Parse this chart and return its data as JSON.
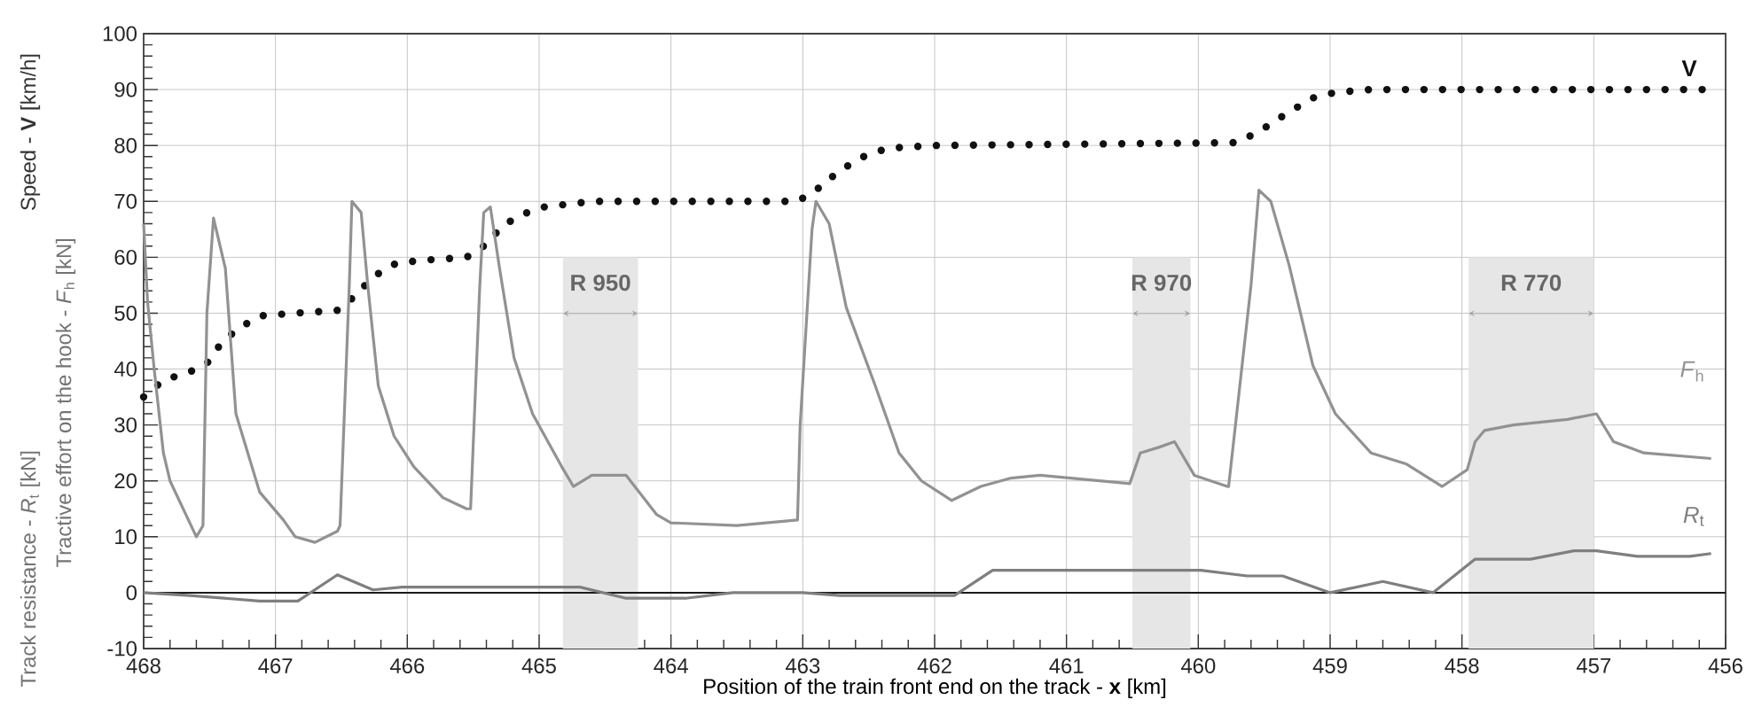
{
  "chart_data": {
    "type": "line",
    "xlabel": "Position of the train front end on the track - **x** [km]",
    "ylabel": "Speed - **V** [km/h]",
    "annotations": [
      "Tractive effort on the hook - *F*$_{h}$ [kN]",
      "Track resistance - *R*$_{t}$ [kN]"
    ],
    "xlim": [
      468,
      456
    ],
    "ylim": [
      -10,
      100
    ],
    "xticks": [
      468,
      467,
      466,
      465,
      464,
      463,
      462,
      461,
      460,
      459,
      458,
      457,
      456
    ],
    "yticks": [
      -10,
      0,
      10,
      20,
      30,
      40,
      50,
      60,
      70,
      80,
      90,
      100
    ],
    "grid": true,
    "series": [
      {
        "name": "**V**",
        "color": "#111111",
        "line_style": "dotted",
        "x": [
          468.0,
          467.85,
          467.65,
          467.52,
          467.43,
          467.3,
          467.12,
          466.85,
          466.53,
          466.4,
          466.26,
          466.08,
          465.86,
          465.55,
          465.42,
          465.28,
          465.15,
          464.96,
          464.6,
          463.04,
          462.9,
          462.72,
          462.54,
          462.36,
          462.0,
          459.71,
          459.54,
          459.31,
          459.13,
          458.96,
          458.69,
          456.17
        ],
        "values": [
          35,
          38,
          39.5,
          41,
          44,
          47,
          49.5,
          50,
          50.5,
          53,
          56.5,
          59,
          59.5,
          60,
          62,
          65.5,
          67.5,
          69,
          70,
          70,
          72,
          75.5,
          78,
          79.5,
          80,
          80.5,
          82.5,
          86,
          88.5,
          89.5,
          90,
          90
        ]
      },
      {
        "name": "*F*$_{h}$",
        "color": "#929292",
        "line_style": "solid",
        "x": [
          468.0,
          467.97,
          467.92,
          467.85,
          467.8,
          467.7,
          467.6,
          467.55,
          467.52,
          467.47,
          467.38,
          467.3,
          467.12,
          466.94,
          466.85,
          466.7,
          466.53,
          466.51,
          466.44,
          466.42,
          466.35,
          466.3,
          466.22,
          466.1,
          465.95,
          465.73,
          465.55,
          465.52,
          465.45,
          465.42,
          465.37,
          465.3,
          465.19,
          465.05,
          464.83,
          464.74,
          464.6,
          464.34,
          464.11,
          464.0,
          463.5,
          463.04,
          463.02,
          462.93,
          462.9,
          462.8,
          462.67,
          462.45,
          462.27,
          462.1,
          461.87,
          461.65,
          461.42,
          461.2,
          460.52,
          460.44,
          460.3,
          460.18,
          460.03,
          459.78,
          459.77,
          459.6,
          459.54,
          459.45,
          459.31,
          459.13,
          458.96,
          458.69,
          458.42,
          458.15,
          457.96,
          457.9,
          457.83,
          457.61,
          457.2,
          456.98,
          456.85,
          456.62,
          456.11
        ],
        "values": [
          66,
          52,
          40,
          25,
          20,
          15,
          10,
          12,
          50,
          67,
          58,
          32,
          18,
          13,
          10,
          9,
          11,
          12,
          55,
          70,
          68,
          55,
          37,
          28,
          22.5,
          17,
          15,
          15,
          55,
          68,
          69,
          58,
          42,
          32,
          22.6,
          19,
          21,
          21,
          14,
          12.5,
          12,
          13,
          30,
          65,
          70,
          66,
          51,
          37,
          25,
          20,
          16.5,
          19,
          20.5,
          21,
          19.5,
          25,
          26,
          27,
          21,
          19,
          19,
          55,
          72,
          70,
          58.5,
          40.6,
          32,
          25,
          23,
          19,
          22,
          27,
          29,
          30,
          31,
          32,
          27,
          25,
          24
        ]
      },
      {
        "name": "*R*$_{t}$",
        "color": "#7f7f7f",
        "line_style": "solid",
        "x": [
          468.0,
          467.65,
          467.12,
          466.83,
          466.53,
          466.26,
          466.04,
          464.69,
          464.34,
          463.89,
          463.53,
          463.0,
          462.72,
          461.85,
          461.56,
          460.2,
          459.98,
          459.63,
          459.36,
          459.0,
          458.6,
          458.22,
          457.9,
          457.48,
          457.15,
          456.98,
          456.67,
          456.27,
          456.11
        ],
        "values": [
          0,
          -0.5,
          -1.5,
          -1.5,
          3.2,
          0.5,
          1,
          1,
          -1,
          -1,
          0,
          0,
          -0.5,
          -0.5,
          4,
          4,
          4,
          3,
          3,
          0,
          2,
          0,
          6,
          6,
          7.5,
          7.5,
          6.5,
          6.5,
          7
        ]
      }
    ],
    "ref_lines": [
      {
        "axis": "y",
        "value": 0,
        "color": "#1a1a1a"
      }
    ],
    "bands": [
      {
        "axis": "x",
        "from": 464.82,
        "to": 464.25,
        "label": "R 950",
        "color": "#e6e6e6"
      },
      {
        "axis": "x",
        "from": 460.5,
        "to": 460.06,
        "label": "R 970",
        "color": "#e6e6e6"
      },
      {
        "axis": "x",
        "from": 457.95,
        "to": 457.0,
        "label": "R 770",
        "color": "#e6e6e6"
      }
    ]
  }
}
